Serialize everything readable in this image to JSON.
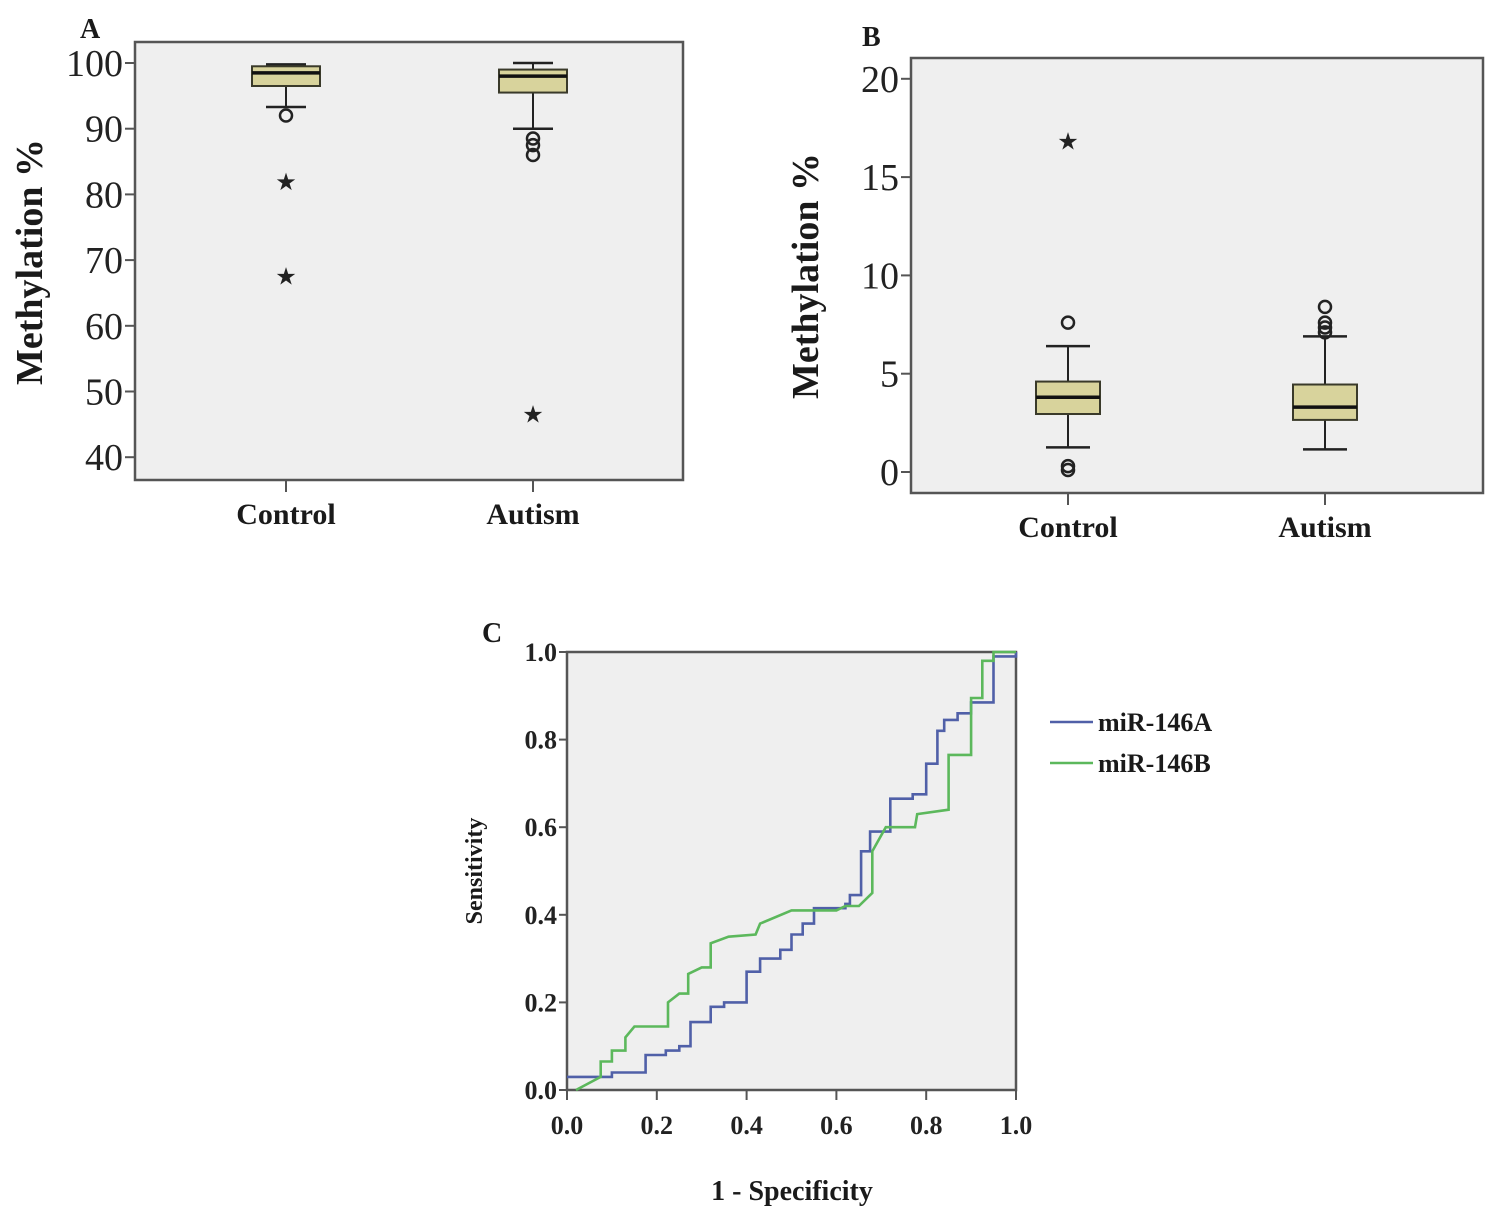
{
  "chart_data": [
    {
      "panel": "A",
      "type": "boxplot",
      "ylabel": "Methylation %",
      "ylim": [
        37,
        104
      ],
      "yticks": [
        "100",
        "90",
        "80",
        "70",
        "60",
        "50",
        "40"
      ],
      "ytick_values": [
        100,
        90,
        80,
        70,
        60,
        50,
        40
      ],
      "categories": [
        "Control",
        "Autism"
      ],
      "boxes": [
        {
          "name": "Control",
          "whisker_high": 99.8,
          "q3": 99.5,
          "median": 98.5,
          "q1": 96.5,
          "whisker_low": 93.3,
          "outliers": [
            92
          ],
          "extremes": [
            82.2,
            67.8
          ]
        },
        {
          "name": "Autism",
          "whisker_high": 100,
          "q3": 99,
          "median": 98,
          "q1": 95.5,
          "whisker_low": 90,
          "outliers": [
            88.5,
            87.5,
            86
          ],
          "extremes": [
            46.8
          ]
        }
      ],
      "colors": {
        "box_fill": "#d8d39c",
        "box_stroke": "#2a2a1e",
        "bg": "#efefef"
      }
    },
    {
      "panel": "B",
      "type": "boxplot",
      "ylabel": "Methylation %",
      "ylim": [
        -0.9,
        21.1
      ],
      "yticks": [
        "20",
        "15",
        "10",
        "5",
        "0"
      ],
      "ytick_values": [
        20,
        15,
        10,
        5,
        0
      ],
      "categories": [
        "Control",
        "Autism"
      ],
      "boxes": [
        {
          "name": "Control",
          "whisker_high": 6.4,
          "q3": 4.6,
          "median": 3.8,
          "q1": 2.95,
          "whisker_low": 1.25,
          "outliers": [
            7.6,
            0.3,
            0.1
          ],
          "extremes": [
            16.9
          ]
        },
        {
          "name": "Autism",
          "whisker_high": 6.9,
          "q3": 4.45,
          "median": 3.3,
          "q1": 2.65,
          "whisker_low": 1.15,
          "outliers": [
            8.4,
            7.6,
            7.35,
            7.1
          ],
          "extremes": []
        }
      ],
      "colors": {
        "box_fill": "#d8d39c",
        "box_stroke": "#2a2a1e",
        "bg": "#efefef"
      }
    },
    {
      "panel": "C",
      "type": "line",
      "xlabel": "1 - Specificity",
      "ylabel": "Sensitivity",
      "xlim": [
        0,
        1
      ],
      "ylim": [
        0,
        1
      ],
      "xticks": [
        "0.0",
        "0.2",
        "0.4",
        "0.6",
        "0.8",
        "1.0"
      ],
      "yticks": [
        "0.0",
        "0.2",
        "0.4",
        "0.6",
        "0.8",
        "1.0"
      ],
      "tick_values": [
        0,
        0.2,
        0.4,
        0.6,
        0.8,
        1.0
      ],
      "legend_position": "right",
      "series": [
        {
          "name": "miR-146A",
          "color": "#5060a8",
          "points": [
            [
              0,
              0.03
            ],
            [
              0.1,
              0.03
            ],
            [
              0.1,
              0.04
            ],
            [
              0.175,
              0.04
            ],
            [
              0.175,
              0.08
            ],
            [
              0.22,
              0.08
            ],
            [
              0.22,
              0.09
            ],
            [
              0.25,
              0.09
            ],
            [
              0.25,
              0.1
            ],
            [
              0.275,
              0.1
            ],
            [
              0.275,
              0.155
            ],
            [
              0.32,
              0.155
            ],
            [
              0.32,
              0.19
            ],
            [
              0.35,
              0.19
            ],
            [
              0.35,
              0.2
            ],
            [
              0.4,
              0.2
            ],
            [
              0.4,
              0.27
            ],
            [
              0.43,
              0.27
            ],
            [
              0.43,
              0.3
            ],
            [
              0.475,
              0.3
            ],
            [
              0.475,
              0.32
            ],
            [
              0.5,
              0.32
            ],
            [
              0.5,
              0.355
            ],
            [
              0.525,
              0.355
            ],
            [
              0.525,
              0.38
            ],
            [
              0.55,
              0.38
            ],
            [
              0.55,
              0.415
            ],
            [
              0.62,
              0.415
            ],
            [
              0.62,
              0.425
            ],
            [
              0.63,
              0.425
            ],
            [
              0.63,
              0.445
            ],
            [
              0.655,
              0.445
            ],
            [
              0.655,
              0.545
            ],
            [
              0.675,
              0.545
            ],
            [
              0.675,
              0.59
            ],
            [
              0.72,
              0.59
            ],
            [
              0.72,
              0.665
            ],
            [
              0.77,
              0.665
            ],
            [
              0.77,
              0.675
            ],
            [
              0.8,
              0.675
            ],
            [
              0.8,
              0.745
            ],
            [
              0.825,
              0.745
            ],
            [
              0.825,
              0.82
            ],
            [
              0.84,
              0.82
            ],
            [
              0.84,
              0.845
            ],
            [
              0.87,
              0.845
            ],
            [
              0.87,
              0.86
            ],
            [
              0.9,
              0.86
            ],
            [
              0.9,
              0.885
            ],
            [
              0.95,
              0.885
            ],
            [
              0.95,
              0.99
            ],
            [
              1.0,
              0.99
            ],
            [
              1.0,
              1.0
            ]
          ]
        },
        {
          "name": "miR-146B",
          "color": "#5cb85c",
          "points": [
            [
              0.02,
              0
            ],
            [
              0.075,
              0.03
            ],
            [
              0.075,
              0.065
            ],
            [
              0.1,
              0.065
            ],
            [
              0.1,
              0.09
            ],
            [
              0.13,
              0.09
            ],
            [
              0.13,
              0.12
            ],
            [
              0.15,
              0.145
            ],
            [
              0.225,
              0.145
            ],
            [
              0.225,
              0.2
            ],
            [
              0.25,
              0.22
            ],
            [
              0.27,
              0.22
            ],
            [
              0.27,
              0.265
            ],
            [
              0.3,
              0.28
            ],
            [
              0.32,
              0.28
            ],
            [
              0.32,
              0.335
            ],
            [
              0.36,
              0.35
            ],
            [
              0.42,
              0.355
            ],
            [
              0.43,
              0.38
            ],
            [
              0.5,
              0.41
            ],
            [
              0.6,
              0.41
            ],
            [
              0.62,
              0.42
            ],
            [
              0.65,
              0.42
            ],
            [
              0.68,
              0.45
            ],
            [
              0.68,
              0.545
            ],
            [
              0.71,
              0.6
            ],
            [
              0.775,
              0.6
            ],
            [
              0.78,
              0.63
            ],
            [
              0.85,
              0.64
            ],
            [
              0.85,
              0.765
            ],
            [
              0.9,
              0.765
            ],
            [
              0.9,
              0.895
            ],
            [
              0.925,
              0.895
            ],
            [
              0.925,
              0.98
            ],
            [
              0.95,
              0.98
            ],
            [
              0.95,
              1.0
            ],
            [
              1.0,
              1.0
            ]
          ]
        }
      ]
    }
  ]
}
